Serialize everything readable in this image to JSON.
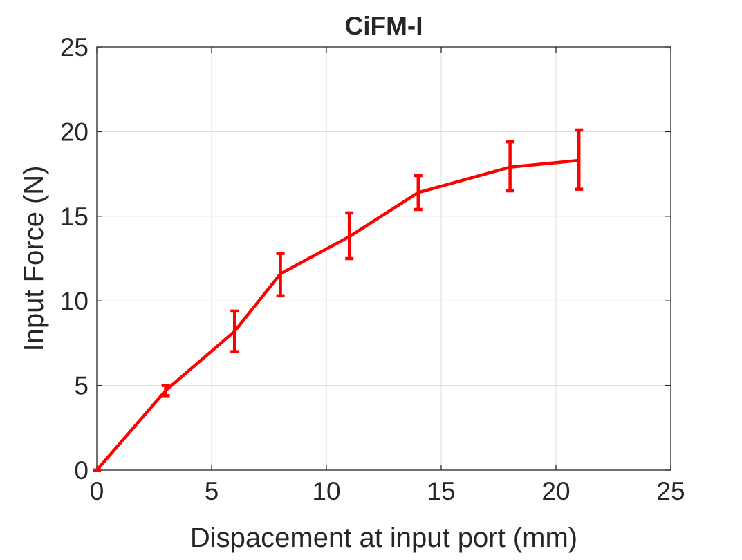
{
  "chart_data": {
    "type": "line",
    "title": "CiFM-I",
    "xlabel": "Dispacement at input port (mm)",
    "ylabel": "Input Force (N)",
    "xlim": [
      0,
      25
    ],
    "ylim": [
      0,
      25
    ],
    "xticks": [
      0,
      5,
      10,
      15,
      20,
      25
    ],
    "yticks": [
      0,
      5,
      10,
      15,
      20,
      25
    ],
    "grid": true,
    "legend": "none",
    "series": [
      {
        "color": "#ff0000",
        "x": [
          0,
          3,
          6,
          8,
          11,
          14,
          18,
          21
        ],
        "y": [
          0,
          4.7,
          8.2,
          11.6,
          13.8,
          16.4,
          17.9,
          18.3
        ],
        "error_low": [
          0,
          4.4,
          7.0,
          10.3,
          12.5,
          15.4,
          16.5,
          16.6
        ],
        "error_high": [
          0,
          5.0,
          9.4,
          12.8,
          15.2,
          17.4,
          19.4,
          20.1
        ]
      }
    ]
  }
}
